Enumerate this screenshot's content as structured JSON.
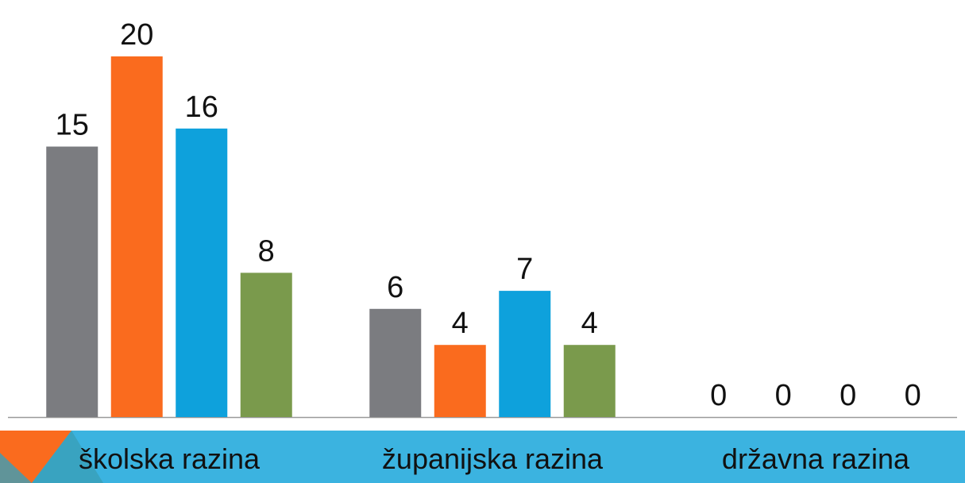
{
  "chart_data": {
    "type": "bar",
    "categories": [
      "školska razina",
      "županijska razina",
      "državna razina"
    ],
    "series": [
      {
        "color": "#7b7c80",
        "values": [
          15,
          6,
          0
        ]
      },
      {
        "color": "#fa6b1e",
        "values": [
          20,
          4,
          0
        ]
      },
      {
        "color": "#0ea1dc",
        "values": [
          16,
          7,
          0
        ]
      },
      {
        "color": "#7a9a4c",
        "values": [
          8,
          4,
          0
        ]
      }
    ],
    "ylim": [
      0,
      20
    ]
  }
}
